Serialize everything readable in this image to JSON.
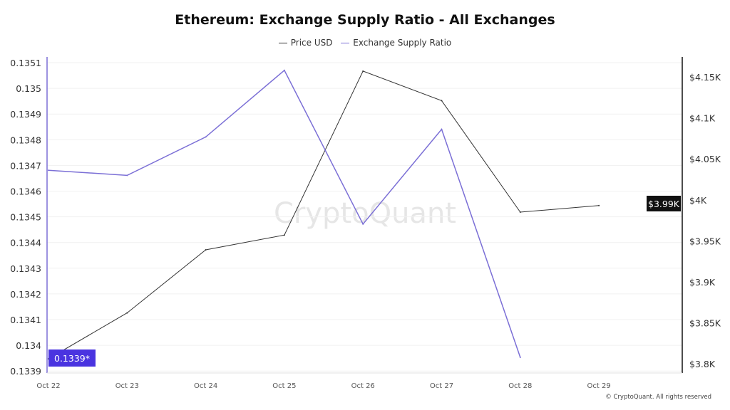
{
  "chart_data": {
    "type": "line",
    "title": "Ethereum: Exchange Supply Ratio - All Exchanges",
    "categories": [
      "Oct 22",
      "Oct 23",
      "Oct 24",
      "Oct 25",
      "Oct 26",
      "Oct 27",
      "Oct 28",
      "Oct 29"
    ],
    "series": [
      {
        "name": "Price USD",
        "axis": "right",
        "color": "#333333",
        "values": [
          3806,
          3862,
          3939,
          3957,
          4157,
          4121,
          3985,
          3993
        ]
      },
      {
        "name": "Exchange Supply Ratio",
        "axis": "left",
        "color": "#7b6fd6",
        "values": [
          0.13468,
          0.13466,
          0.13481,
          0.13507,
          0.13447,
          0.13484,
          0.13395,
          null
        ]
      }
    ],
    "left_axis": {
      "ticks": [
        "0.1351",
        "0.135",
        "0.1349",
        "0.1348",
        "0.1347",
        "0.1346",
        "0.1345",
        "0.1344",
        "0.1343",
        "0.1342",
        "0.1341",
        "0.134",
        "0.1339"
      ],
      "range": [
        0.1339,
        0.13511
      ]
    },
    "right_axis": {
      "ticks": [
        "$4.15K",
        "$4.1K",
        "$4.05K",
        "$4K",
        "$3.95K",
        "$3.9K",
        "$3.85K",
        "$3.8K"
      ],
      "range": [
        3800,
        4150
      ]
    },
    "left_marker": "0.1339*",
    "right_marker": "$3.99K",
    "grid": true,
    "legend_position": "top"
  },
  "watermark": "CryptoQuant",
  "credit": "© CryptoQuant. All rights reserved"
}
